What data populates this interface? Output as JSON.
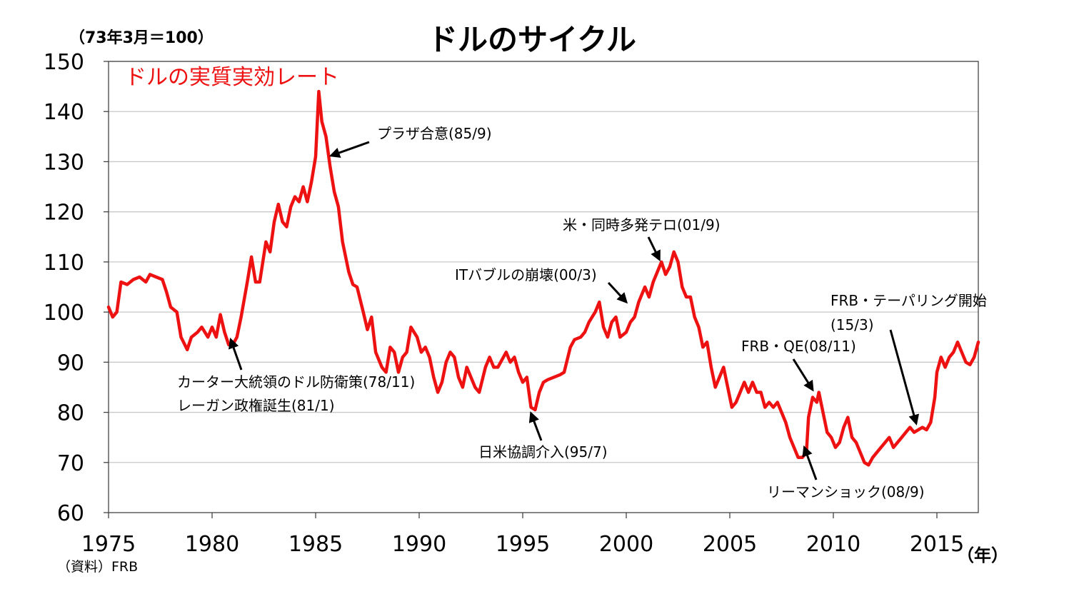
{
  "page": {
    "title": "ドルのサイクル",
    "base_note": "（73年3月＝100）",
    "source_note": "（資料）FRB",
    "x_unit": "（年）"
  },
  "chart_data": {
    "type": "line",
    "title": "ドルのサイクル",
    "xlabel": "（年）",
    "ylabel": "（73年3月＝100）",
    "xlim": [
      1975,
      2017
    ],
    "ylim": [
      60,
      150
    ],
    "grid": true,
    "x_ticks": [
      1975,
      1980,
      1985,
      1990,
      1995,
      2000,
      2005,
      2010,
      2015
    ],
    "y_ticks": [
      60,
      70,
      80,
      90,
      100,
      110,
      120,
      130,
      140,
      150
    ],
    "colors": {
      "series": "#ee1111",
      "grid": "#c8c8c8",
      "axis": "#444444"
    },
    "series": [
      {
        "name": "ドルの実質実効レート",
        "points": [
          [
            1975.0,
            101
          ],
          [
            1975.2,
            99
          ],
          [
            1975.4,
            100
          ],
          [
            1975.6,
            106
          ],
          [
            1975.9,
            105.5
          ],
          [
            1976.2,
            106.5
          ],
          [
            1976.5,
            107
          ],
          [
            1976.8,
            106
          ],
          [
            1977.0,
            107.5
          ],
          [
            1977.3,
            107
          ],
          [
            1977.6,
            106.5
          ],
          [
            1977.8,
            104
          ],
          [
            1978.0,
            101
          ],
          [
            1978.3,
            100
          ],
          [
            1978.5,
            95
          ],
          [
            1978.8,
            92.5
          ],
          [
            1979.0,
            95
          ],
          [
            1979.3,
            96
          ],
          [
            1979.5,
            97
          ],
          [
            1979.8,
            95
          ],
          [
            1980.0,
            97
          ],
          [
            1980.2,
            95
          ],
          [
            1980.4,
            99.5
          ],
          [
            1980.6,
            96
          ],
          [
            1980.8,
            93.5
          ],
          [
            1981.0,
            93.5
          ],
          [
            1981.2,
            95
          ],
          [
            1981.4,
            99
          ],
          [
            1981.7,
            106
          ],
          [
            1981.9,
            111
          ],
          [
            1982.1,
            106
          ],
          [
            1982.3,
            106
          ],
          [
            1982.6,
            114
          ],
          [
            1982.8,
            112
          ],
          [
            1983.0,
            118
          ],
          [
            1983.2,
            121.5
          ],
          [
            1983.4,
            118
          ],
          [
            1983.6,
            117
          ],
          [
            1983.8,
            121
          ],
          [
            1984.0,
            123
          ],
          [
            1984.2,
            122
          ],
          [
            1984.4,
            125
          ],
          [
            1984.6,
            122
          ],
          [
            1984.8,
            126
          ],
          [
            1985.0,
            131
          ],
          [
            1985.15,
            144
          ],
          [
            1985.3,
            138
          ],
          [
            1985.5,
            135
          ],
          [
            1985.7,
            129
          ],
          [
            1985.9,
            124
          ],
          [
            1986.1,
            121
          ],
          [
            1986.3,
            114
          ],
          [
            1986.6,
            108
          ],
          [
            1986.8,
            105.5
          ],
          [
            1987.0,
            105
          ],
          [
            1987.3,
            100
          ],
          [
            1987.5,
            96.5
          ],
          [
            1987.7,
            99
          ],
          [
            1987.9,
            92
          ],
          [
            1988.2,
            89
          ],
          [
            1988.4,
            88
          ],
          [
            1988.6,
            93
          ],
          [
            1988.8,
            92
          ],
          [
            1989.0,
            88
          ],
          [
            1989.2,
            91
          ],
          [
            1989.4,
            92
          ],
          [
            1989.6,
            97
          ],
          [
            1989.9,
            95
          ],
          [
            1990.1,
            92
          ],
          [
            1990.3,
            93
          ],
          [
            1990.5,
            91
          ],
          [
            1990.7,
            87
          ],
          [
            1990.9,
            84
          ],
          [
            1991.1,
            86
          ],
          [
            1991.3,
            90
          ],
          [
            1991.5,
            92
          ],
          [
            1991.7,
            91
          ],
          [
            1991.9,
            87
          ],
          [
            1992.1,
            85
          ],
          [
            1992.3,
            89
          ],
          [
            1992.5,
            87
          ],
          [
            1992.7,
            85
          ],
          [
            1992.9,
            84
          ],
          [
            1993.2,
            89
          ],
          [
            1993.4,
            91
          ],
          [
            1993.6,
            89
          ],
          [
            1993.8,
            89
          ],
          [
            1994.0,
            90.5
          ],
          [
            1994.2,
            92
          ],
          [
            1994.4,
            90
          ],
          [
            1994.6,
            91
          ],
          [
            1994.8,
            88
          ],
          [
            1995.0,
            86
          ],
          [
            1995.2,
            87
          ],
          [
            1995.4,
            81
          ],
          [
            1995.6,
            80.5
          ],
          [
            1995.8,
            84
          ],
          [
            1996.0,
            86
          ],
          [
            1996.2,
            86.5
          ],
          [
            1996.5,
            87
          ],
          [
            1996.8,
            87.5
          ],
          [
            1997.0,
            88
          ],
          [
            1997.3,
            93
          ],
          [
            1997.5,
            94.5
          ],
          [
            1997.8,
            95
          ],
          [
            1998.0,
            96
          ],
          [
            1998.2,
            98
          ],
          [
            1998.5,
            100
          ],
          [
            1998.7,
            102
          ],
          [
            1998.9,
            97
          ],
          [
            1999.1,
            95
          ],
          [
            1999.3,
            98
          ],
          [
            1999.5,
            99
          ],
          [
            1999.7,
            95
          ],
          [
            2000.0,
            96
          ],
          [
            2000.2,
            98
          ],
          [
            2000.4,
            99
          ],
          [
            2000.6,
            102
          ],
          [
            2000.9,
            105
          ],
          [
            2001.1,
            103
          ],
          [
            2001.3,
            106
          ],
          [
            2001.5,
            108
          ],
          [
            2001.7,
            110
          ],
          [
            2001.9,
            107.5
          ],
          [
            2002.1,
            109
          ],
          [
            2002.3,
            112
          ],
          [
            2002.5,
            110
          ],
          [
            2002.7,
            105
          ],
          [
            2002.9,
            103
          ],
          [
            2003.1,
            103
          ],
          [
            2003.3,
            99
          ],
          [
            2003.5,
            97
          ],
          [
            2003.7,
            93
          ],
          [
            2003.9,
            94
          ],
          [
            2004.1,
            89
          ],
          [
            2004.3,
            85
          ],
          [
            2004.5,
            87
          ],
          [
            2004.7,
            89
          ],
          [
            2004.9,
            85
          ],
          [
            2005.1,
            81
          ],
          [
            2005.3,
            82
          ],
          [
            2005.5,
            84
          ],
          [
            2005.7,
            86
          ],
          [
            2005.9,
            84
          ],
          [
            2006.1,
            86
          ],
          [
            2006.3,
            84
          ],
          [
            2006.5,
            84
          ],
          [
            2006.7,
            81
          ],
          [
            2006.9,
            82
          ],
          [
            2007.1,
            81
          ],
          [
            2007.3,
            82
          ],
          [
            2007.5,
            80
          ],
          [
            2007.7,
            78
          ],
          [
            2007.9,
            75
          ],
          [
            2008.1,
            73
          ],
          [
            2008.3,
            71
          ],
          [
            2008.5,
            71
          ],
          [
            2008.7,
            72
          ],
          [
            2008.8,
            79
          ],
          [
            2009.0,
            83
          ],
          [
            2009.2,
            82
          ],
          [
            2009.3,
            84
          ],
          [
            2009.5,
            80
          ],
          [
            2009.7,
            76
          ],
          [
            2009.9,
            75
          ],
          [
            2010.1,
            73
          ],
          [
            2010.3,
            74
          ],
          [
            2010.5,
            77
          ],
          [
            2010.7,
            79
          ],
          [
            2010.9,
            75
          ],
          [
            2011.1,
            74
          ],
          [
            2011.3,
            72
          ],
          [
            2011.5,
            70
          ],
          [
            2011.7,
            69.5
          ],
          [
            2011.9,
            71
          ],
          [
            2012.1,
            72
          ],
          [
            2012.3,
            73
          ],
          [
            2012.5,
            74
          ],
          [
            2012.7,
            75
          ],
          [
            2012.9,
            73
          ],
          [
            2013.1,
            74
          ],
          [
            2013.3,
            75
          ],
          [
            2013.5,
            76
          ],
          [
            2013.7,
            77
          ],
          [
            2013.9,
            76
          ],
          [
            2014.1,
            76.5
          ],
          [
            2014.3,
            77
          ],
          [
            2014.5,
            76.5
          ],
          [
            2014.7,
            78
          ],
          [
            2014.9,
            83
          ],
          [
            2015.0,
            88
          ],
          [
            2015.2,
            91
          ],
          [
            2015.4,
            89
          ],
          [
            2015.6,
            91
          ],
          [
            2015.8,
            92
          ],
          [
            2016.0,
            94
          ],
          [
            2016.2,
            92
          ],
          [
            2016.4,
            90
          ],
          [
            2016.6,
            89.5
          ],
          [
            2016.8,
            91
          ],
          [
            2017.0,
            94
          ]
        ]
      }
    ],
    "series_label": "ドルの実質実効レート",
    "annotations": [
      {
        "text": "プラザ合意(85/9)",
        "target": [
          1985.75,
          131.2
        ],
        "arrow": true
      },
      {
        "text": "カーター大統領のドル防衛策(78/11)",
        "target": [
          1980.9,
          94.5
        ],
        "arrow": true
      },
      {
        "text": "レーガン政権誕生(81/1)",
        "target": null,
        "arrow": false
      },
      {
        "text": "日米協調介入(95/7)",
        "target": [
          1995.4,
          79.8
        ],
        "arrow": true
      },
      {
        "text": "ITバブルの崩壊(00/3)",
        "target": [
          2000.0,
          102.0
        ],
        "arrow": true
      },
      {
        "text": "米・同時多発テロ(01/9)",
        "target": [
          2001.6,
          110.5
        ],
        "arrow": true
      },
      {
        "text": "FRB・QE(08/11)",
        "target": [
          2009.0,
          84.5
        ],
        "arrow": true
      },
      {
        "text": "リーマンショック(08/9)",
        "target": [
          2008.6,
          73.0
        ],
        "arrow": true
      },
      {
        "text": "FRB・テーパリング開始",
        "target": null,
        "arrow": false
      },
      {
        "text": "(15/3)",
        "target": [
          2014.0,
          77.8
        ],
        "arrow": true
      }
    ]
  }
}
